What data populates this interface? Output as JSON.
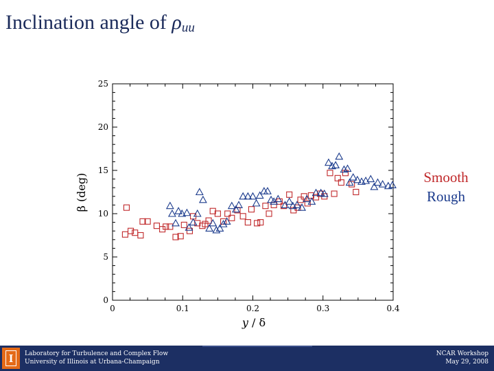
{
  "slide": {
    "title_text": "Inclination angle of ",
    "title_symbol": "ρ",
    "title_subscript": "uu"
  },
  "legend": {
    "smooth": "Smooth",
    "rough": "Rough"
  },
  "footer": {
    "lab_line1": "Laboratory for Turbulence and Complex Flow",
    "lab_line2": "University of Illinois at Urbana-Champaign",
    "event_line1": "NCAR Workshop",
    "event_line2": "May 29, 2008",
    "logo_glyph": "I"
  },
  "colors": {
    "title": "#1a2a5a",
    "smooth": "#c0282a",
    "rough": "#1a3a8c",
    "footer_bg": "#1c2f63",
    "logo": "#e46a17"
  },
  "chart_data": {
    "type": "scatter",
    "xlabel_italic": "y",
    "xlabel_rest": " / δ",
    "ylabel": "β (deg)",
    "xlim": [
      0,
      0.4
    ],
    "ylim": [
      0,
      25
    ],
    "xticks": [
      0,
      0.1,
      0.2,
      0.3,
      0.4
    ],
    "xtick_labels": [
      "0",
      "0.1",
      "0.2",
      "0.3",
      "0.4"
    ],
    "yticks": [
      0,
      5,
      10,
      15,
      20,
      25
    ],
    "ytick_labels": [
      "0",
      "5",
      "10",
      "15",
      "20",
      "25"
    ],
    "grid": false,
    "legend_placement": "right",
    "series": [
      {
        "name": "Smooth",
        "marker": "square",
        "color": "#c0282a",
        "points": [
          [
            0.018,
            7.6
          ],
          [
            0.02,
            10.7
          ],
          [
            0.026,
            8.0
          ],
          [
            0.032,
            7.8
          ],
          [
            0.04,
            7.5
          ],
          [
            0.043,
            9.1
          ],
          [
            0.05,
            9.1
          ],
          [
            0.063,
            8.6
          ],
          [
            0.071,
            8.2
          ],
          [
            0.076,
            8.5
          ],
          [
            0.082,
            8.5
          ],
          [
            0.09,
            7.3
          ],
          [
            0.097,
            7.4
          ],
          [
            0.102,
            8.7
          ],
          [
            0.11,
            8.0
          ],
          [
            0.115,
            9.7
          ],
          [
            0.121,
            8.9
          ],
          [
            0.128,
            8.6
          ],
          [
            0.132,
            8.8
          ],
          [
            0.137,
            9.2
          ],
          [
            0.143,
            10.3
          ],
          [
            0.15,
            10.0
          ],
          [
            0.158,
            9.1
          ],
          [
            0.164,
            10.0
          ],
          [
            0.17,
            9.5
          ],
          [
            0.178,
            10.4
          ],
          [
            0.186,
            9.7
          ],
          [
            0.193,
            9.0
          ],
          [
            0.198,
            10.5
          ],
          [
            0.206,
            8.9
          ],
          [
            0.211,
            9.0
          ],
          [
            0.218,
            10.9
          ],
          [
            0.223,
            10.0
          ],
          [
            0.23,
            11.0
          ],
          [
            0.238,
            11.4
          ],
          [
            0.244,
            10.9
          ],
          [
            0.252,
            12.2
          ],
          [
            0.258,
            10.4
          ],
          [
            0.264,
            10.7
          ],
          [
            0.268,
            11.6
          ],
          [
            0.273,
            12.0
          ],
          [
            0.278,
            11.2
          ],
          [
            0.283,
            12.1
          ],
          [
            0.29,
            11.9
          ],
          [
            0.296,
            12.3
          ],
          [
            0.302,
            12.0
          ],
          [
            0.31,
            14.7
          ],
          [
            0.316,
            12.3
          ],
          [
            0.321,
            14.1
          ],
          [
            0.326,
            13.6
          ],
          [
            0.332,
            14.7
          ],
          [
            0.341,
            13.4
          ],
          [
            0.347,
            12.5
          ]
        ]
      },
      {
        "name": "Rough",
        "marker": "triangle",
        "color": "#1a3a8c",
        "points": [
          [
            0.082,
            10.9
          ],
          [
            0.085,
            10.0
          ],
          [
            0.09,
            8.9
          ],
          [
            0.094,
            10.3
          ],
          [
            0.099,
            10.0
          ],
          [
            0.106,
            10.1
          ],
          [
            0.109,
            8.4
          ],
          [
            0.115,
            9.0
          ],
          [
            0.121,
            10.0
          ],
          [
            0.124,
            12.5
          ],
          [
            0.129,
            11.6
          ],
          [
            0.138,
            8.3
          ],
          [
            0.143,
            8.9
          ],
          [
            0.148,
            8.1
          ],
          [
            0.153,
            8.3
          ],
          [
            0.158,
            8.8
          ],
          [
            0.163,
            9.1
          ],
          [
            0.17,
            10.9
          ],
          [
            0.176,
            10.5
          ],
          [
            0.18,
            11.0
          ],
          [
            0.186,
            12.0
          ],
          [
            0.193,
            12.0
          ],
          [
            0.2,
            12.0
          ],
          [
            0.205,
            11.2
          ],
          [
            0.21,
            12.1
          ],
          [
            0.216,
            12.6
          ],
          [
            0.221,
            12.6
          ],
          [
            0.226,
            11.6
          ],
          [
            0.23,
            11.4
          ],
          [
            0.236,
            11.7
          ],
          [
            0.246,
            11.0
          ],
          [
            0.252,
            11.4
          ],
          [
            0.257,
            10.9
          ],
          [
            0.263,
            11.0
          ],
          [
            0.27,
            10.7
          ],
          [
            0.277,
            11.7
          ],
          [
            0.284,
            11.4
          ],
          [
            0.29,
            12.4
          ],
          [
            0.297,
            12.4
          ],
          [
            0.302,
            12.3
          ],
          [
            0.308,
            15.9
          ],
          [
            0.313,
            15.5
          ],
          [
            0.318,
            15.6
          ],
          [
            0.323,
            16.6
          ],
          [
            0.33,
            15.1
          ],
          [
            0.335,
            15.2
          ],
          [
            0.338,
            13.6
          ],
          [
            0.343,
            14.2
          ],
          [
            0.349,
            13.9
          ],
          [
            0.355,
            13.7
          ],
          [
            0.361,
            13.8
          ],
          [
            0.368,
            14.0
          ],
          [
            0.373,
            13.1
          ],
          [
            0.378,
            13.6
          ],
          [
            0.385,
            13.4
          ],
          [
            0.393,
            13.2
          ],
          [
            0.399,
            13.3
          ]
        ]
      }
    ]
  }
}
